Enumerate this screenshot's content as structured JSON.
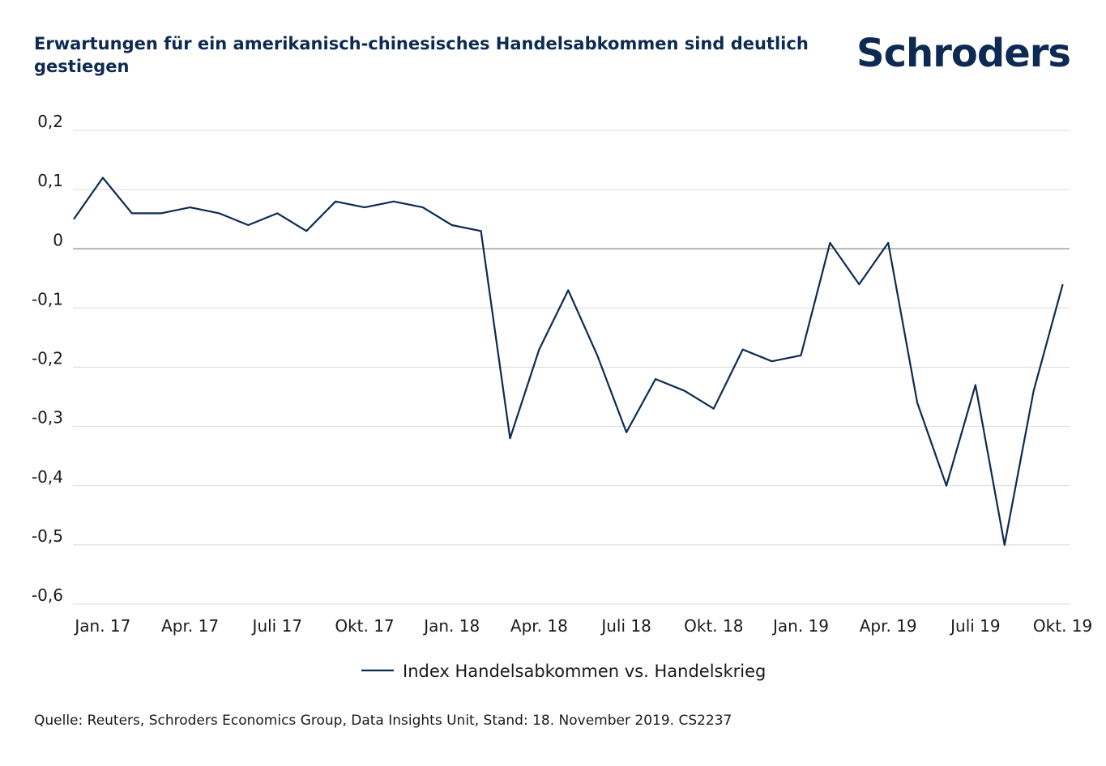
{
  "header": {
    "title": "Erwartungen für ein amerikanisch-chinesisches Handelsabkommen sind deutlich gestiegen",
    "logo_text": "Schroders"
  },
  "footer": {
    "source": "Quelle: Reuters, Schroders Economics Group, Data Insights Unit, Stand: 18. November 2019. CS2237"
  },
  "colors": {
    "series": "#0d2b52",
    "grid": "#d9d9d9",
    "zero_line": "#8c8c8c"
  },
  "chart_data": {
    "type": "line",
    "title": "Erwartungen für ein amerikanisch-chinesisches Handelsabkommen sind deutlich gestiegen",
    "xlabel": "",
    "ylabel": "",
    "ylim": [
      -0.6,
      0.2
    ],
    "grid": true,
    "legend_position": "bottom-center",
    "y_ticks": [
      "0,2",
      "0,1",
      "0",
      "-0,1",
      "-0,2",
      "-0,3",
      "-0,4",
      "-0,5",
      "-0,6"
    ],
    "y_tick_values": [
      0.2,
      0.1,
      0,
      -0.1,
      -0.2,
      -0.3,
      -0.4,
      -0.5,
      -0.6
    ],
    "x_ticks": [
      "Jan. 17",
      "Apr. 17",
      "Juli 17",
      "Okt. 17",
      "Jan. 18",
      "Apr. 18",
      "Juli 18",
      "Okt. 18",
      "Jan. 19",
      "Apr. 19",
      "Juli 19",
      "Okt. 19"
    ],
    "x_tick_months": [
      1,
      4,
      7,
      10,
      13,
      16,
      19,
      22,
      25,
      28,
      31,
      34
    ],
    "x_months": [
      0,
      1,
      2,
      3,
      4,
      5,
      6,
      7,
      8,
      9,
      10,
      11,
      12,
      13,
      14,
      15,
      16,
      17,
      18,
      19,
      20,
      21,
      22,
      23,
      24,
      25,
      26,
      27,
      28,
      29,
      30,
      31,
      32,
      33,
      34
    ],
    "series": [
      {
        "name": "Index Handelsabkommen vs. Handelskrieg",
        "values": [
          0.05,
          0.12,
          0.06,
          0.06,
          0.07,
          0.06,
          0.04,
          0.06,
          0.03,
          0.08,
          0.07,
          0.08,
          0.07,
          0.04,
          0.03,
          -0.32,
          -0.17,
          -0.07,
          -0.18,
          -0.31,
          -0.22,
          -0.24,
          -0.27,
          -0.17,
          -0.19,
          -0.18,
          0.01,
          -0.06,
          0.01,
          -0.26,
          -0.4,
          -0.23,
          -0.5,
          -0.24,
          -0.06
        ]
      }
    ]
  }
}
